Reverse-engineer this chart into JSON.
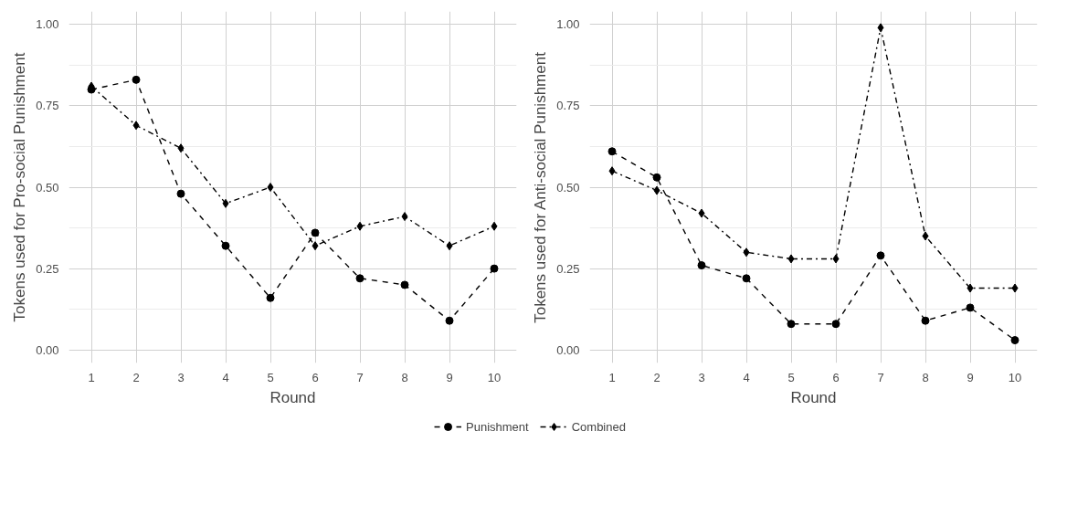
{
  "chart_data": [
    {
      "type": "line",
      "xlabel": "Round",
      "ylabel": "Tokens used for Pro-social Punishment",
      "x": [
        1,
        2,
        3,
        4,
        5,
        6,
        7,
        8,
        9,
        10
      ],
      "xlim": [
        0.5,
        10.5
      ],
      "xticks": [
        1,
        2,
        3,
        4,
        5,
        6,
        7,
        8,
        9,
        10
      ],
      "ylim": [
        -0.04,
        1.04
      ],
      "yticks": [
        {
          "value": 0,
          "label": "0.00"
        },
        {
          "value": 0.25,
          "label": "0.25"
        },
        {
          "value": 0.5,
          "label": "0.50"
        },
        {
          "value": 0.75,
          "label": "0.75"
        },
        {
          "value": 1,
          "label": "1.00"
        }
      ],
      "grid": true,
      "legend": "bottom",
      "series": [
        {
          "name": "Punishment",
          "color": "#000000",
          "marker": "circle",
          "line_style": "dashed",
          "values": [
            0.8,
            0.83,
            0.48,
            0.32,
            0.16,
            0.36,
            0.22,
            0.2,
            0.09,
            0.25
          ]
        },
        {
          "name": "Combined",
          "color": "#000000",
          "marker": "diamond",
          "line_style": "dashdot",
          "values": [
            0.81,
            0.69,
            0.62,
            0.45,
            0.5,
            0.32,
            0.38,
            0.41,
            0.32,
            0.38
          ]
        }
      ]
    },
    {
      "type": "line",
      "xlabel": "Round",
      "ylabel": "Tokens used for Anti-social Punishment",
      "x": [
        1,
        2,
        3,
        4,
        5,
        6,
        7,
        8,
        9,
        10
      ],
      "xlim": [
        0.5,
        10.5
      ],
      "xticks": [
        1,
        2,
        3,
        4,
        5,
        6,
        7,
        8,
        9,
        10
      ],
      "ylim": [
        -0.04,
        1.04
      ],
      "yticks": [
        {
          "value": 0,
          "label": "0.00"
        },
        {
          "value": 0.25,
          "label": "0.25"
        },
        {
          "value": 0.5,
          "label": "0.50"
        },
        {
          "value": 0.75,
          "label": "0.75"
        },
        {
          "value": 1,
          "label": "1.00"
        }
      ],
      "grid": true,
      "series": [
        {
          "color": "#000000",
          "marker": "circle",
          "line_style": "dashed",
          "values": [
            0.61,
            0.53,
            0.26,
            0.22,
            0.08,
            0.08,
            0.29,
            0.09,
            0.13,
            0.03
          ]
        },
        {
          "color": "#000000",
          "marker": "diamond",
          "line_style": "dashdot",
          "values": [
            0.55,
            0.49,
            0.42,
            0.3,
            0.28,
            0.28,
            0.99,
            0.35,
            0.19,
            0.19
          ]
        }
      ]
    }
  ]
}
